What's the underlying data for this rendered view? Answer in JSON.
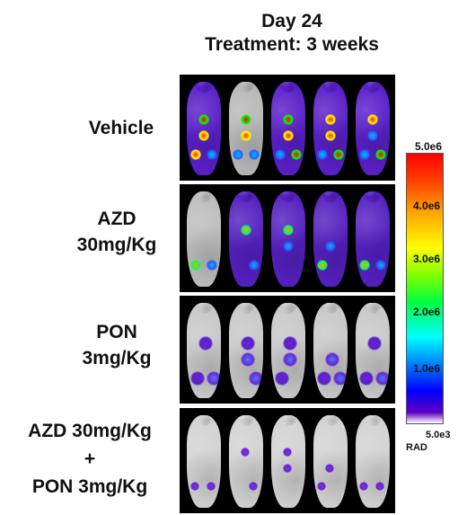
{
  "header": {
    "line1": "Day 24",
    "line2": "Treatment: 3 weeks"
  },
  "groups": [
    {
      "label_lines": [
        "Vehicle"
      ],
      "signal": "high"
    },
    {
      "label_lines": [
        "AZD",
        "30mg/Kg"
      ],
      "signal": "medium"
    },
    {
      "label_lines": [
        "PON",
        "3mg/Kg"
      ],
      "signal": "low"
    },
    {
      "label_lines": [
        "AZD 30mg/Kg",
        "+",
        "PON 3mg/Kg"
      ],
      "signal": "minimal"
    }
  ],
  "mice_per_group": 5,
  "colorbar": {
    "max": "5.0e6",
    "ticks": [
      "4.0e6",
      "3.0e6",
      "2.0e6",
      "1.0e6"
    ],
    "min": "5.0e3",
    "unit": "RAD",
    "colors": [
      "#ff0000",
      "#ffa500",
      "#ffff00",
      "#00ff40",
      "#00ffff",
      "#0080ff",
      "#0000ff",
      "#6000c0"
    ]
  }
}
